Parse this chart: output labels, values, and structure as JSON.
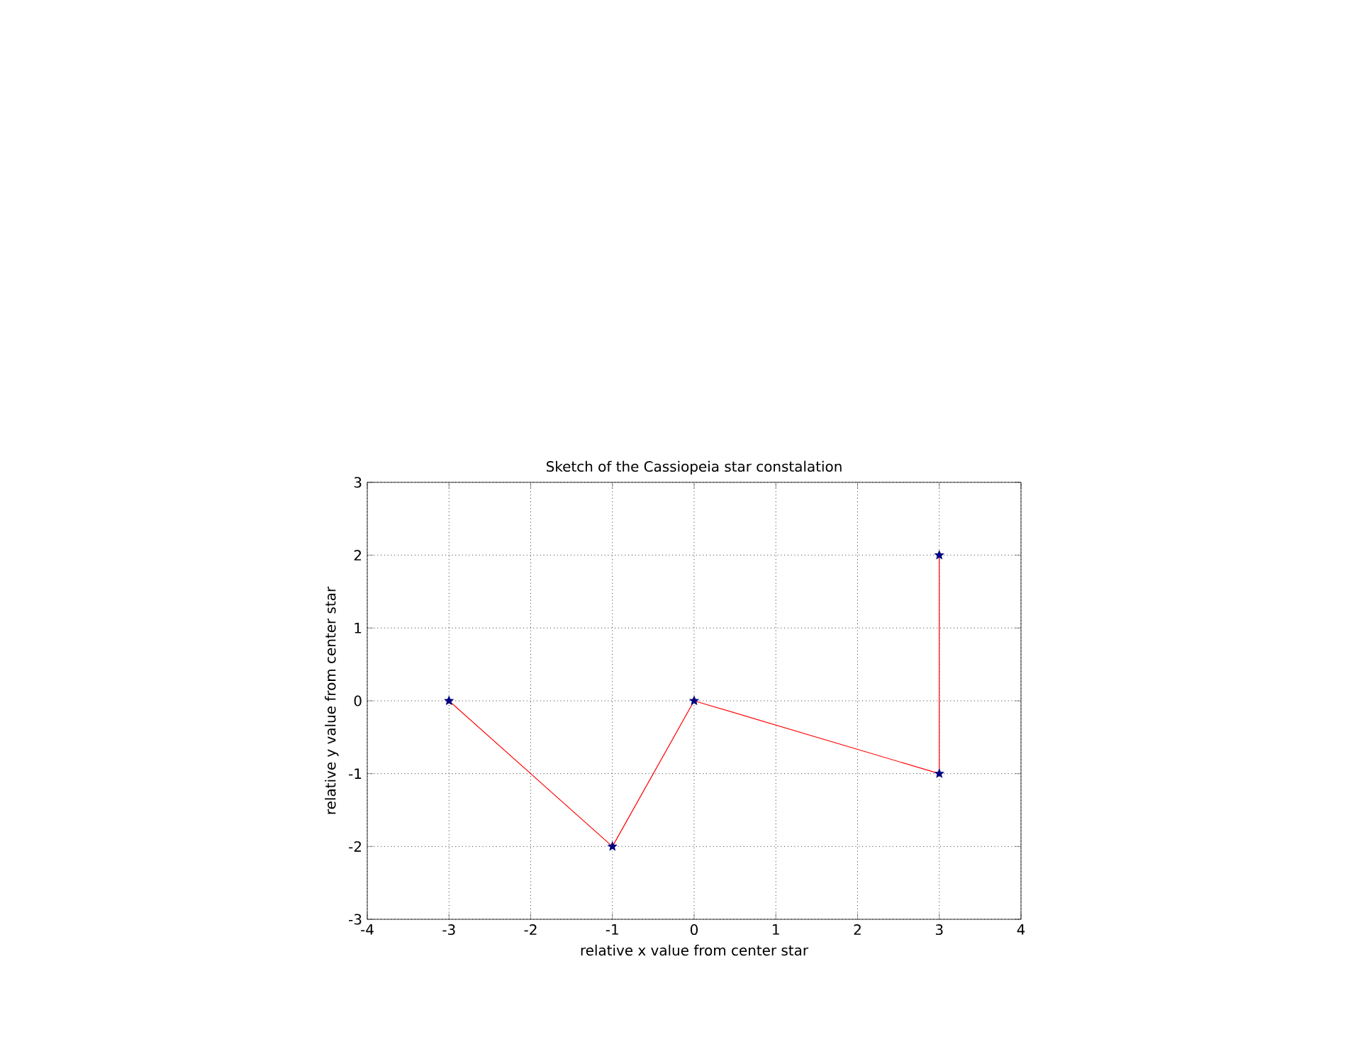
{
  "chart_data": {
    "type": "line",
    "title": "Sketch of the Cassiopeia star constalation",
    "xlabel": "relative x value from center star",
    "ylabel": "relative y value from center star",
    "x": [
      -3,
      -1,
      0,
      3,
      3
    ],
    "series": [
      {
        "color": "#ff0000",
        "marker": "none",
        "values": [
          0,
          -2,
          0,
          -1,
          2
        ]
      },
      {
        "type": "scatter",
        "color": "#000080",
        "marker": "star",
        "values": [
          0,
          -2,
          0,
          -1,
          2
        ]
      }
    ],
    "xlim": [
      -4,
      4
    ],
    "ylim": [
      -3,
      3
    ],
    "xticks": [
      -4,
      -3,
      -2,
      -1,
      0,
      1,
      2,
      3,
      4
    ],
    "yticks": [
      -3,
      -2,
      -1,
      0,
      1,
      2,
      3
    ],
    "grid": true
  }
}
